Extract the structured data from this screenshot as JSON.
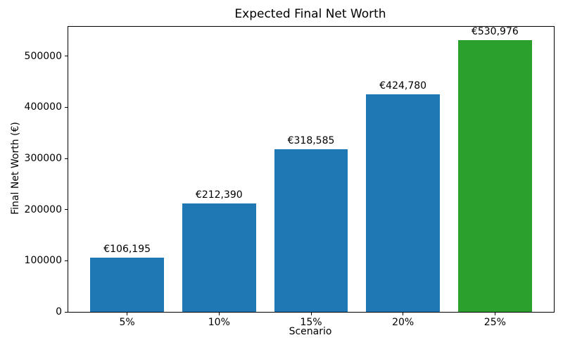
{
  "chart_data": {
    "type": "bar",
    "title": "Expected Final Net Worth",
    "xlabel": "Scenario",
    "ylabel": "Final Net Worth (€)",
    "categories": [
      "5%",
      "10%",
      "15%",
      "20%",
      "25%"
    ],
    "values": [
      106195,
      212390,
      318585,
      424780,
      530976
    ],
    "bar_labels": [
      "€106,195",
      "€212,390",
      "€318,585",
      "€424,780",
      "€530,976"
    ],
    "bar_colors": [
      "#1f77b4",
      "#1f77b4",
      "#1f77b4",
      "#1f77b4",
      "#2ca02c"
    ],
    "yticks": [
      0,
      100000,
      200000,
      300000,
      400000,
      500000
    ],
    "ytick_labels": [
      "0",
      "100000",
      "200000",
      "300000",
      "400000",
      "500000"
    ],
    "ylim": [
      0,
      557525
    ],
    "bar_width_fraction": 0.8,
    "grid": false,
    "legend_position": "none"
  }
}
